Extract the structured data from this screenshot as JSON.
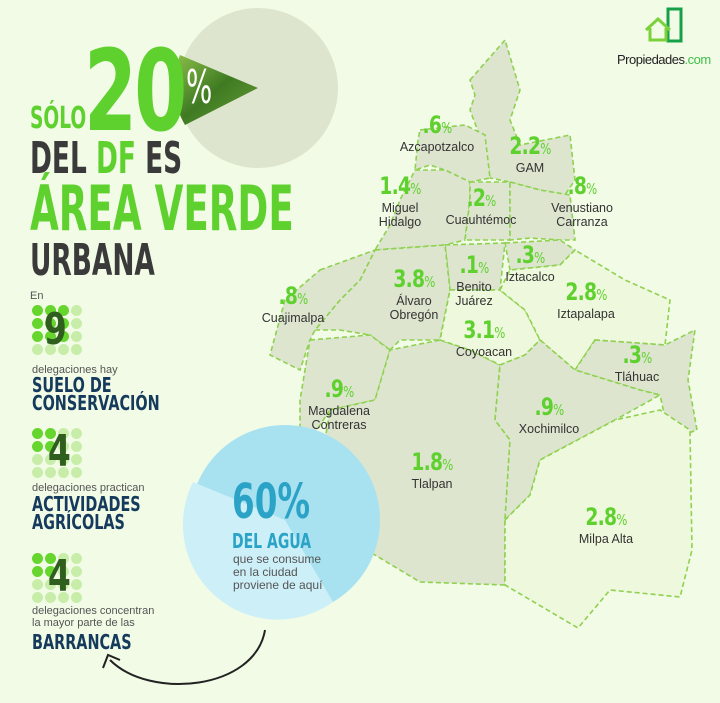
{
  "logo": {
    "brand": "Propiedades",
    "suffix": ".com"
  },
  "headline": {
    "solo": "SÓLO",
    "percent_value": "20",
    "percent_sign": "%",
    "del": "DEL",
    "df": "DF",
    "es": "ES",
    "area_verde": "ÁREA VERDE",
    "urbana": "URBANA",
    "green_share": 0.2
  },
  "facts": [
    {
      "intro": "En",
      "number": "9",
      "highlighted_dots": 9,
      "total_dots": 16,
      "text": "delegaciones hay",
      "highlight": "SUELO DE\nCONSERVACIÓN"
    },
    {
      "number": "4",
      "highlighted_dots": 4,
      "total_dots": 16,
      "text": "delegaciones practican",
      "highlight": "ACTIVIDADES\nAGRÍCOLAS"
    },
    {
      "number": "4",
      "highlighted_dots": 4,
      "total_dots": 16,
      "text": "delegaciones concentran\nla mayor parte de las",
      "highlight": "BARRANCAS"
    }
  ],
  "water": {
    "percent": "60%",
    "title": "DEL AGUA",
    "text": "que se consume\nen la ciudad\nproviene de aquí"
  },
  "regions": [
    {
      "name": "Azcapotzalco",
      "pct": ".6"
    },
    {
      "name": "GAM",
      "pct": "2.2"
    },
    {
      "name": "Miguel\nHidalgo",
      "pct": "1.4"
    },
    {
      "name": "Cuauhtémoc",
      "pct": ".2"
    },
    {
      "name": "Venustiano\nCarranza",
      "pct": ".8"
    },
    {
      "name": "Iztacalco",
      "pct": ".3"
    },
    {
      "name": "Benito\nJuárez",
      "pct": ".1"
    },
    {
      "name": "Álvaro\nObregón",
      "pct": "3.8"
    },
    {
      "name": "Cuajimalpa",
      "pct": ".8"
    },
    {
      "name": "Coyoacan",
      "pct": "3.1"
    },
    {
      "name": "Iztapalapa",
      "pct": "2.8"
    },
    {
      "name": "Tláhuac",
      "pct": ".3"
    },
    {
      "name": "Magdalena\nContreras",
      "pct": ".9"
    },
    {
      "name": "Xochimilco",
      "pct": ".9"
    },
    {
      "name": "Tlalpan",
      "pct": "1.8"
    },
    {
      "name": "Milpa Alta",
      "pct": "2.8"
    }
  ],
  "pct_sign": "%",
  "colors": {
    "green": "#5fd12e",
    "navy": "#153a5c",
    "water": "#a8e2f0",
    "map_gray": "#dde5cf",
    "background": "#f1fbe6"
  }
}
